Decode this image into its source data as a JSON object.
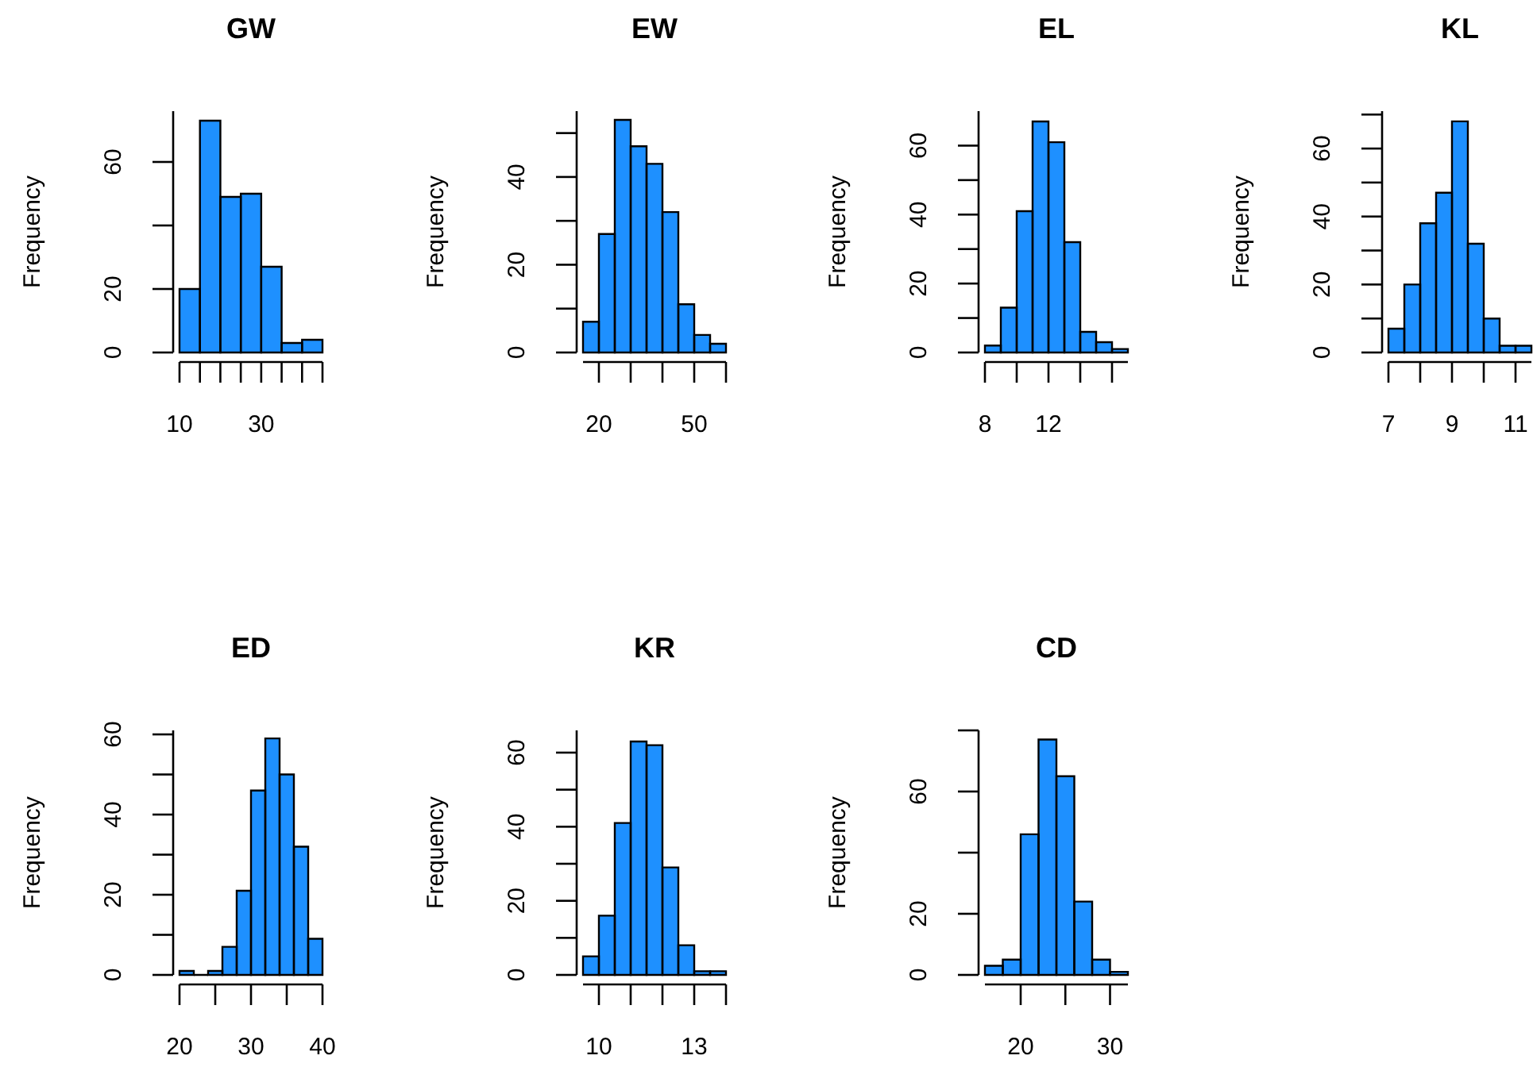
{
  "chart_data": [
    {
      "type": "histogram",
      "title": "GW",
      "ylabel": "Frequency",
      "color": "#1e90ff",
      "bins": [
        10,
        15,
        20,
        25,
        30,
        35,
        40,
        45
      ],
      "values": [
        20,
        73,
        49,
        50,
        27,
        3,
        4
      ],
      "xlim": [
        10,
        45
      ],
      "xticks": [
        10,
        {
          "value": 15,
          "label": null
        },
        {
          "value": 20,
          "label": null
        },
        {
          "value": 25,
          "label": null
        },
        30,
        {
          "value": 35,
          "label": null
        },
        {
          "value": 40,
          "label": null
        },
        {
          "value": 45,
          "label": null
        }
      ],
      "ylim": [
        0,
        76
      ],
      "yticks": [
        0,
        20,
        {
          "value": 40,
          "label": null
        },
        60
      ]
    },
    {
      "type": "histogram",
      "title": "EW",
      "ylabel": "Frequency",
      "color": "#1e90ff",
      "bins": [
        15,
        20,
        25,
        30,
        35,
        40,
        45,
        50,
        55,
        60
      ],
      "values": [
        7,
        27,
        53,
        47,
        43,
        32,
        11,
        4,
        2
      ],
      "xlim": [
        15,
        60
      ],
      "xticks": [
        20,
        {
          "value": 30,
          "label": null
        },
        {
          "value": 40,
          "label": null
        },
        50,
        {
          "value": 60,
          "label": null
        }
      ],
      "ylim": [
        0,
        55
      ],
      "yticks": [
        0,
        {
          "value": 10,
          "label": null
        },
        20,
        {
          "value": 30,
          "label": null
        },
        40,
        {
          "value": 50,
          "label": null
        }
      ]
    },
    {
      "type": "histogram",
      "title": "EL",
      "ylabel": "Frequency",
      "color": "#1e90ff",
      "bins": [
        8,
        9,
        10,
        11,
        12,
        13,
        14,
        15,
        16,
        17
      ],
      "values": [
        2,
        13,
        41,
        67,
        61,
        32,
        6,
        3,
        1
      ],
      "xlim": [
        8,
        17
      ],
      "xticks": [
        8,
        {
          "value": 10,
          "label": null
        },
        12,
        {
          "value": 14,
          "label": null
        },
        {
          "value": 16,
          "label": null
        }
      ],
      "ylim": [
        0,
        70
      ],
      "yticks": [
        0,
        {
          "value": 10,
          "label": null
        },
        20,
        {
          "value": 30,
          "label": null
        },
        40,
        {
          "value": 50,
          "label": null
        },
        60
      ]
    },
    {
      "type": "histogram",
      "title": "KL",
      "ylabel": "Frequency",
      "color": "#1e90ff",
      "bins": [
        7,
        7.5,
        8,
        8.5,
        9,
        9.5,
        10,
        10.5,
        11,
        11.5
      ],
      "values": [
        7,
        20,
        38,
        47,
        68,
        32,
        10,
        2,
        2
      ],
      "xlim": [
        7,
        11.5
      ],
      "xticks": [
        7,
        {
          "value": 8,
          "label": null
        },
        9,
        {
          "value": 10,
          "label": null
        },
        11
      ],
      "ylim": [
        0,
        71
      ],
      "yticks": [
        0,
        {
          "value": 10,
          "label": null
        },
        20,
        {
          "value": 30,
          "label": null
        },
        40,
        {
          "value": 50,
          "label": null
        },
        60,
        {
          "value": 70,
          "label": null
        }
      ]
    },
    {
      "type": "histogram",
      "title": "ED",
      "ylabel": "Frequency",
      "color": "#1e90ff",
      "bins": [
        20,
        22,
        24,
        26,
        28,
        30,
        32,
        34,
        36,
        38,
        40
      ],
      "values": [
        1,
        0,
        1,
        7,
        21,
        46,
        59,
        50,
        32,
        9
      ],
      "xlim": [
        20,
        40
      ],
      "xticks": [
        20,
        {
          "value": 25,
          "label": null
        },
        30,
        {
          "value": 35,
          "label": null
        },
        40
      ],
      "ylim": [
        0,
        61
      ],
      "yticks": [
        0,
        {
          "value": 10,
          "label": null
        },
        20,
        {
          "value": 30,
          "label": null
        },
        40,
        {
          "value": 50,
          "label": null
        },
        60
      ]
    },
    {
      "type": "histogram",
      "title": "KR",
      "ylabel": "Frequency",
      "color": "#1e90ff",
      "bins": [
        9.5,
        10,
        10.5,
        11,
        11.5,
        12,
        12.5,
        13,
        13.5,
        14
      ],
      "values": [
        5,
        16,
        41,
        63,
        62,
        29,
        8,
        1,
        1
      ],
      "xlim": [
        9.5,
        14
      ],
      "xticks": [
        10,
        {
          "value": 11,
          "label": null
        },
        {
          "value": 12,
          "label": null
        },
        13,
        {
          "value": 14,
          "label": null
        }
      ],
      "ylim": [
        0,
        66
      ],
      "yticks": [
        0,
        {
          "value": 10,
          "label": null
        },
        20,
        {
          "value": 30,
          "label": null
        },
        40,
        {
          "value": 50,
          "label": null
        },
        60
      ]
    },
    {
      "type": "histogram",
      "title": "CD",
      "ylabel": "Frequency",
      "color": "#1e90ff",
      "bins": [
        16,
        18,
        20,
        22,
        24,
        26,
        28,
        30,
        32
      ],
      "values": [
        3,
        5,
        46,
        77,
        65,
        24,
        5,
        1
      ],
      "xlim": [
        16,
        32
      ],
      "xticks": [
        20,
        {
          "value": 25,
          "label": null
        },
        30
      ],
      "ylim": [
        0,
        80
      ],
      "yticks": [
        0,
        20,
        {
          "value": 40,
          "label": null
        },
        60,
        {
          "value": 80,
          "label": null
        }
      ]
    }
  ]
}
